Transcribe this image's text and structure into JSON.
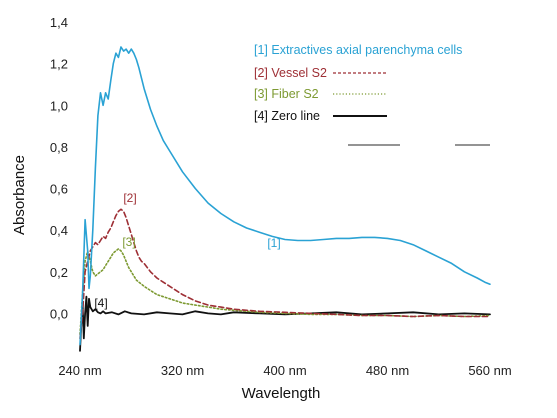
{
  "chart_data": {
    "type": "line",
    "xlabel": "Wavelength",
    "ylabel": "Absorbance",
    "xlim": [
      240,
      560
    ],
    "ylim": [
      -0.2,
      1.4
    ],
    "x_ticks": [
      240,
      320,
      400,
      480,
      560
    ],
    "x_tick_labels": [
      "240 nm",
      "320 nm",
      "400 nm",
      "480 nm",
      "560 nm"
    ],
    "y_ticks": [
      0.0,
      0.2,
      0.4,
      0.6,
      0.8,
      1.0,
      1.2,
      1.4
    ],
    "y_tick_labels": [
      "0,0",
      "0,2",
      "0,4",
      "0,6",
      "0,8",
      "1,0",
      "1,2",
      "1,4"
    ],
    "grid": false,
    "legend_position": "top-right",
    "series": [
      {
        "name": "[1] Extractives axial parenchyma cells",
        "color": "#2aa2d4",
        "dash": "solid",
        "annotation": "[1]",
        "x": [
          240,
          242,
          244,
          246,
          247,
          248,
          250,
          252,
          254,
          256,
          258,
          260,
          262,
          264,
          266,
          268,
          270,
          272,
          274,
          276,
          278,
          280,
          282,
          284,
          286,
          288,
          290,
          295,
          300,
          305,
          310,
          320,
          330,
          340,
          350,
          360,
          370,
          380,
          390,
          400,
          410,
          420,
          430,
          440,
          450,
          460,
          470,
          480,
          490,
          500,
          510,
          520,
          530,
          540,
          550,
          556,
          560
        ],
        "y": [
          -0.15,
          0.1,
          0.45,
          0.3,
          0.12,
          0.18,
          0.4,
          0.7,
          0.95,
          1.06,
          1.0,
          1.06,
          1.03,
          1.12,
          1.2,
          1.25,
          1.23,
          1.28,
          1.26,
          1.27,
          1.25,
          1.27,
          1.25,
          1.22,
          1.18,
          1.13,
          1.08,
          0.98,
          0.9,
          0.83,
          0.78,
          0.68,
          0.6,
          0.53,
          0.48,
          0.44,
          0.41,
          0.39,
          0.37,
          0.355,
          0.35,
          0.35,
          0.355,
          0.36,
          0.36,
          0.365,
          0.365,
          0.36,
          0.35,
          0.33,
          0.3,
          0.27,
          0.24,
          0.2,
          0.17,
          0.15,
          0.14
        ]
      },
      {
        "name": "[2] Vessel S2",
        "color": "#9e2f35",
        "dash": "dashed",
        "annotation": "[2]",
        "x": [
          240,
          242,
          244,
          246,
          248,
          250,
          252,
          254,
          256,
          258,
          260,
          262,
          264,
          266,
          268,
          270,
          272,
          274,
          276,
          278,
          280,
          282,
          284,
          286,
          288,
          290,
          295,
          300,
          305,
          310,
          320,
          330,
          340,
          350,
          360,
          370,
          380,
          400,
          420,
          440,
          460,
          480,
          500,
          520,
          540,
          560
        ],
        "y": [
          -0.12,
          0.0,
          0.2,
          0.25,
          0.3,
          0.32,
          0.34,
          0.33,
          0.35,
          0.37,
          0.36,
          0.39,
          0.41,
          0.44,
          0.47,
          0.49,
          0.5,
          0.49,
          0.46,
          0.42,
          0.38,
          0.34,
          0.3,
          0.27,
          0.25,
          0.24,
          0.2,
          0.17,
          0.15,
          0.13,
          0.09,
          0.06,
          0.04,
          0.03,
          0.02,
          0.015,
          0.01,
          0.005,
          0.0,
          -0.005,
          -0.01,
          -0.01,
          -0.015,
          -0.01,
          -0.015,
          -0.015
        ]
      },
      {
        "name": "[3] Fiber S2",
        "color": "#7d9a32",
        "dash": "dotted",
        "annotation": "[3]",
        "x": [
          240,
          242,
          244,
          246,
          248,
          250,
          252,
          254,
          256,
          258,
          260,
          262,
          264,
          266,
          268,
          270,
          272,
          274,
          276,
          278,
          280,
          282,
          284,
          286,
          288,
          290,
          295,
          300,
          305,
          310,
          320,
          330,
          340,
          350,
          360,
          370,
          380,
          400,
          420,
          440,
          460,
          480,
          500,
          520,
          540,
          560
        ],
        "y": [
          -0.1,
          0.1,
          0.25,
          0.3,
          0.25,
          0.2,
          0.18,
          0.19,
          0.2,
          0.21,
          0.23,
          0.25,
          0.27,
          0.29,
          0.3,
          0.31,
          0.3,
          0.28,
          0.25,
          0.22,
          0.2,
          0.18,
          0.16,
          0.15,
          0.14,
          0.13,
          0.11,
          0.09,
          0.08,
          0.07,
          0.05,
          0.04,
          0.03,
          0.02,
          0.015,
          0.01,
          0.005,
          0.0,
          -0.005,
          -0.005,
          -0.01,
          -0.01,
          -0.015,
          -0.01,
          -0.015,
          -0.01
        ]
      },
      {
        "name": "[4] Zero line",
        "color": "#111111",
        "dash": "solid",
        "annotation": "[4]",
        "x": [
          240,
          241,
          242,
          243,
          244,
          245,
          246,
          247,
          248,
          250,
          252,
          254,
          256,
          258,
          260,
          265,
          270,
          275,
          280,
          290,
          300,
          310,
          320,
          330,
          340,
          350,
          360,
          380,
          400,
          420,
          440,
          460,
          480,
          500,
          520,
          540,
          560
        ],
        "y": [
          -0.18,
          -0.05,
          0.05,
          -0.12,
          0.0,
          0.08,
          -0.06,
          0.07,
          0.03,
          0.01,
          0.02,
          0.005,
          0.0,
          0.01,
          0.0,
          0.005,
          -0.005,
          0.01,
          0.0,
          -0.005,
          0.005,
          0.0,
          -0.005,
          0.01,
          0.0,
          -0.005,
          0.005,
          0.0,
          -0.005,
          0.0,
          0.005,
          -0.005,
          0.0,
          0.005,
          -0.005,
          0.0,
          -0.005
        ]
      }
    ]
  }
}
